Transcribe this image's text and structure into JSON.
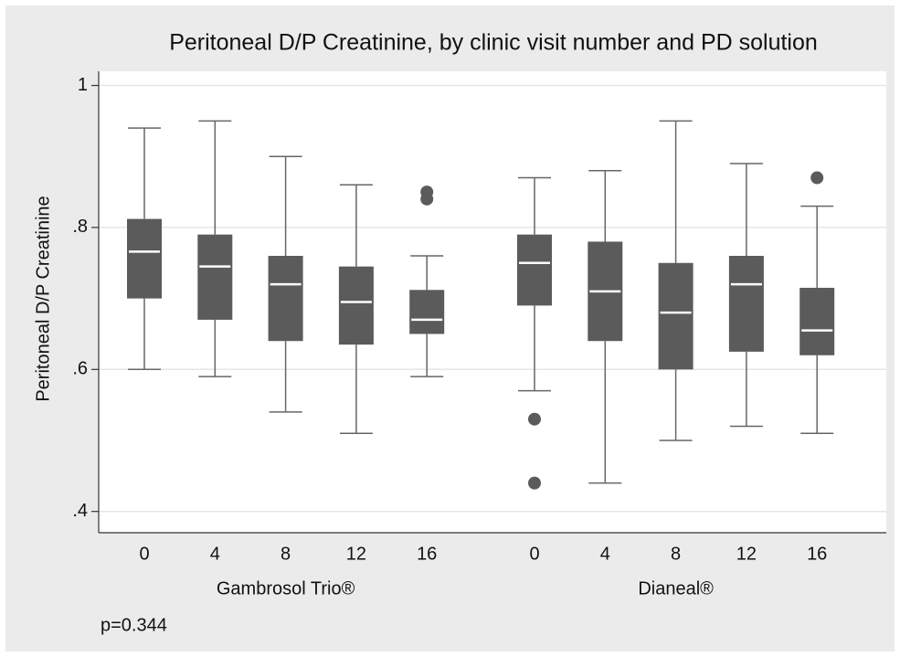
{
  "chart_data": {
    "type": "box",
    "title": "Peritoneal D/P Creatinine, by clinic visit number and PD solution",
    "y_label": "Peritoneal D/P Creatinine",
    "note": "p=0.344",
    "ylim": [
      0.37,
      1.02
    ],
    "yticks": [
      {
        "value": 0.4,
        "label": ".4"
      },
      {
        "value": 0.6,
        "label": ".6"
      },
      {
        "value": 0.8,
        "label": ".8"
      },
      1
    ],
    "grid": true,
    "color": "#5b5b5b",
    "groups": [
      {
        "name": "Gambrosol Trio®",
        "categories": [
          "0",
          "4",
          "8",
          "12",
          "16"
        ],
        "boxes": [
          {
            "min": 0.6,
            "q1": 0.7,
            "median": 0.766,
            "q3": 0.812,
            "max": 0.94,
            "outliers": []
          },
          {
            "min": 0.59,
            "q1": 0.67,
            "median": 0.745,
            "q3": 0.79,
            "max": 0.95,
            "outliers": []
          },
          {
            "min": 0.54,
            "q1": 0.64,
            "median": 0.72,
            "q3": 0.76,
            "max": 0.9,
            "outliers": []
          },
          {
            "min": 0.51,
            "q1": 0.635,
            "median": 0.695,
            "q3": 0.745,
            "max": 0.86,
            "outliers": []
          },
          {
            "min": 0.59,
            "q1": 0.65,
            "median": 0.67,
            "q3": 0.712,
            "max": 0.76,
            "outliers": [
              0.85,
              0.84
            ]
          }
        ]
      },
      {
        "name": "Dianeal®",
        "categories": [
          "0",
          "4",
          "8",
          "12",
          "16"
        ],
        "boxes": [
          {
            "min": 0.57,
            "q1": 0.69,
            "median": 0.75,
            "q3": 0.79,
            "max": 0.87,
            "outliers": [
              0.53,
              0.44
            ]
          },
          {
            "min": 0.44,
            "q1": 0.64,
            "median": 0.71,
            "q3": 0.78,
            "max": 0.88,
            "outliers": []
          },
          {
            "min": 0.5,
            "q1": 0.6,
            "median": 0.68,
            "q3": 0.75,
            "max": 0.95,
            "outliers": []
          },
          {
            "min": 0.52,
            "q1": 0.625,
            "median": 0.72,
            "q3": 0.76,
            "max": 0.89,
            "outliers": []
          },
          {
            "min": 0.51,
            "q1": 0.62,
            "median": 0.655,
            "q3": 0.715,
            "max": 0.83,
            "outliers": [
              0.87
            ]
          }
        ]
      }
    ]
  }
}
